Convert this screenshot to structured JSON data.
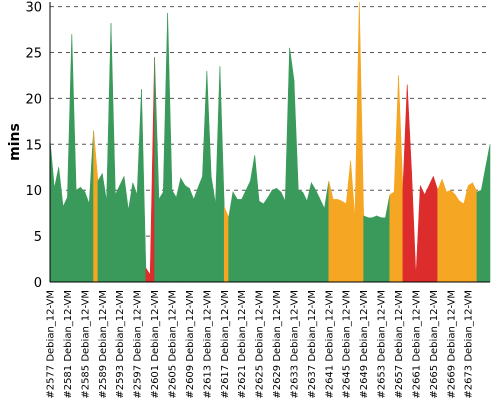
{
  "chart_data": {
    "type": "area",
    "title": "",
    "xlabel": "",
    "ylabel": "mins",
    "ylim": [
      0,
      30.5
    ],
    "yticks": [
      0,
      5,
      10,
      15,
      20,
      25,
      30
    ],
    "grid": true,
    "legend": "none",
    "status_colors": {
      "success": "#3a9a5b",
      "unstable": "#f5a623",
      "failure": "#dd2c2c"
    },
    "x_labels": [
      "#2577 Debian_12-VM",
      "#2581 Debian_12-VM",
      "#2585 Debian_12-VM",
      "#2589 Debian_12-VM",
      "#2593 Debian_12-VM",
      "#2597 Debian_12-VM",
      "#2601 Debian_12-VM",
      "#2605 Debian_12-VM",
      "#2609 Debian_12-VM",
      "#2613 Debian_12-VM",
      "#2617 Debian_12-VM",
      "#2621 Debian_12-VM",
      "#2625 Debian_12-VM",
      "#2629 Debian_12-VM",
      "#2633 Debian_12-VM",
      "#2637 Debian_12-VM",
      "#2641 Debian_12-VM",
      "#2645 Debian_12-VM",
      "#2649 Debian_12-VM",
      "#2653 Debian_12-VM",
      "#2657 Debian_12-VM",
      "#2661 Debian_12-VM",
      "#2665 Debian_12-VM",
      "#2669 Debian_12-VM",
      "#2673 Debian_12-VM"
    ],
    "builds": [
      {
        "y": 15.5,
        "s": "success"
      },
      {
        "y": 10.2,
        "s": "success"
      },
      {
        "y": 12.5,
        "s": "success"
      },
      {
        "y": 8.2,
        "s": "success"
      },
      {
        "y": 9.2,
        "s": "success"
      },
      {
        "y": 27.0,
        "s": "success"
      },
      {
        "y": 10.0,
        "s": "success"
      },
      {
        "y": 10.3,
        "s": "success"
      },
      {
        "y": 9.8,
        "s": "success"
      },
      {
        "y": 8.5,
        "s": "success"
      },
      {
        "y": 16.5,
        "s": "unstable"
      },
      {
        "y": 11.0,
        "s": "success"
      },
      {
        "y": 11.8,
        "s": "success"
      },
      {
        "y": 8.8,
        "s": "success"
      },
      {
        "y": 28.2,
        "s": "success"
      },
      {
        "y": 9.5,
        "s": "success"
      },
      {
        "y": 10.5,
        "s": "success"
      },
      {
        "y": 11.5,
        "s": "success"
      },
      {
        "y": 7.8,
        "s": "success"
      },
      {
        "y": 10.8,
        "s": "success"
      },
      {
        "y": 9.5,
        "s": "success"
      },
      {
        "y": 21.0,
        "s": "success"
      },
      {
        "y": 1.5,
        "s": "failure"
      },
      {
        "y": 0.8,
        "s": "failure"
      },
      {
        "y": 24.5,
        "s": "success"
      },
      {
        "y": 9.0,
        "s": "success"
      },
      {
        "y": 9.8,
        "s": "success"
      },
      {
        "y": 29.3,
        "s": "success"
      },
      {
        "y": 10.0,
        "s": "success"
      },
      {
        "y": 9.2,
        "s": "success"
      },
      {
        "y": 11.3,
        "s": "success"
      },
      {
        "y": 10.5,
        "s": "success"
      },
      {
        "y": 10.2,
        "s": "success"
      },
      {
        "y": 9.0,
        "s": "success"
      },
      {
        "y": 10.3,
        "s": "success"
      },
      {
        "y": 11.5,
        "s": "success"
      },
      {
        "y": 23.0,
        "s": "success"
      },
      {
        "y": 11.5,
        "s": "success"
      },
      {
        "y": 8.5,
        "s": "success"
      },
      {
        "y": 23.5,
        "s": "success"
      },
      {
        "y": 8.2,
        "s": "unstable"
      },
      {
        "y": 7.0,
        "s": "success"
      },
      {
        "y": 9.8,
        "s": "success"
      },
      {
        "y": 9.0,
        "s": "success"
      },
      {
        "y": 9.0,
        "s": "success"
      },
      {
        "y": 10.0,
        "s": "success"
      },
      {
        "y": 11.0,
        "s": "success"
      },
      {
        "y": 13.8,
        "s": "success"
      },
      {
        "y": 8.8,
        "s": "success"
      },
      {
        "y": 8.5,
        "s": "success"
      },
      {
        "y": 9.2,
        "s": "success"
      },
      {
        "y": 10.0,
        "s": "success"
      },
      {
        "y": 10.2,
        "s": "success"
      },
      {
        "y": 9.8,
        "s": "success"
      },
      {
        "y": 8.8,
        "s": "success"
      },
      {
        "y": 25.5,
        "s": "success"
      },
      {
        "y": 22.0,
        "s": "success"
      },
      {
        "y": 10.0,
        "s": "success"
      },
      {
        "y": 9.8,
        "s": "success"
      },
      {
        "y": 8.8,
        "s": "success"
      },
      {
        "y": 10.8,
        "s": "success"
      },
      {
        "y": 10.0,
        "s": "success"
      },
      {
        "y": 9.0,
        "s": "success"
      },
      {
        "y": 8.0,
        "s": "success"
      },
      {
        "y": 11.0,
        "s": "unstable"
      },
      {
        "y": 9.0,
        "s": "unstable"
      },
      {
        "y": 9.0,
        "s": "unstable"
      },
      {
        "y": 8.8,
        "s": "unstable"
      },
      {
        "y": 8.5,
        "s": "unstable"
      },
      {
        "y": 13.2,
        "s": "unstable"
      },
      {
        "y": 7.0,
        "s": "unstable"
      },
      {
        "y": 31.5,
        "s": "unstable"
      },
      {
        "y": 7.2,
        "s": "success"
      },
      {
        "y": 7.0,
        "s": "success"
      },
      {
        "y": 7.0,
        "s": "success"
      },
      {
        "y": 7.2,
        "s": "success"
      },
      {
        "y": 7.0,
        "s": "success"
      },
      {
        "y": 7.0,
        "s": "success"
      },
      {
        "y": 9.5,
        "s": "unstable"
      },
      {
        "y": 9.8,
        "s": "unstable"
      },
      {
        "y": 22.5,
        "s": "unstable"
      },
      {
        "y": 10.0,
        "s": "failure"
      },
      {
        "y": 21.5,
        "s": "failure"
      },
      {
        "y": 12.0,
        "s": "failure"
      },
      {
        "y": 0.5,
        "s": "failure"
      },
      {
        "y": 10.5,
        "s": "failure"
      },
      {
        "y": 9.5,
        "s": "failure"
      },
      {
        "y": 10.5,
        "s": "failure"
      },
      {
        "y": 11.5,
        "s": "failure"
      },
      {
        "y": 10.0,
        "s": "unstable"
      },
      {
        "y": 11.2,
        "s": "unstable"
      },
      {
        "y": 9.8,
        "s": "unstable"
      },
      {
        "y": 10.0,
        "s": "unstable"
      },
      {
        "y": 9.5,
        "s": "unstable"
      },
      {
        "y": 8.8,
        "s": "unstable"
      },
      {
        "y": 8.5,
        "s": "unstable"
      },
      {
        "y": 10.5,
        "s": "unstable"
      },
      {
        "y": 10.8,
        "s": "unstable"
      },
      {
        "y": 9.8,
        "s": "success"
      },
      {
        "y": 10.0,
        "s": "success"
      },
      {
        "y": 12.5,
        "s": "success"
      },
      {
        "y": 15.0,
        "s": "success"
      }
    ]
  }
}
